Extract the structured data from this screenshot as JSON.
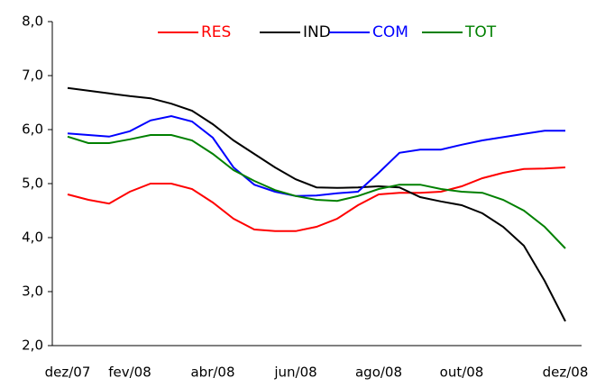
{
  "chart_data": {
    "type": "line",
    "categories": [
      "dez/07",
      null,
      null,
      "fev/08",
      null,
      null,
      null,
      "abr/08",
      null,
      null,
      null,
      "jun/08",
      null,
      null,
      null,
      "ago/08",
      null,
      null,
      null,
      "out/08",
      null,
      null,
      null,
      null,
      "dez/08"
    ],
    "series": [
      {
        "name": "RES",
        "color": "#ff0000",
        "values": [
          4.8,
          4.7,
          4.63,
          4.85,
          5.0,
          5.0,
          4.9,
          4.65,
          4.35,
          4.15,
          4.12,
          4.12,
          4.2,
          4.35,
          4.6,
          4.8,
          4.83,
          4.83,
          4.85,
          4.95,
          5.1,
          5.2,
          5.27,
          5.28,
          5.3
        ]
      },
      {
        "name": "IND",
        "color": "#000000",
        "values": [
          6.77,
          6.72,
          6.67,
          6.62,
          6.58,
          6.48,
          6.35,
          6.1,
          5.8,
          5.55,
          5.3,
          5.08,
          4.93,
          4.92,
          4.93,
          4.95,
          4.93,
          4.75,
          4.67,
          4.6,
          4.45,
          4.2,
          3.85,
          3.2,
          2.45
        ]
      },
      {
        "name": "COM",
        "color": "#0000ff",
        "values": [
          5.93,
          5.9,
          5.87,
          5.97,
          6.17,
          6.25,
          6.15,
          5.85,
          5.3,
          4.98,
          4.85,
          4.77,
          4.78,
          4.82,
          4.85,
          5.2,
          5.57,
          5.63,
          5.63,
          5.72,
          5.8,
          5.86,
          5.92,
          5.98,
          5.98
        ]
      },
      {
        "name": "TOT",
        "color": "#008000",
        "values": [
          5.87,
          5.75,
          5.75,
          5.82,
          5.9,
          5.9,
          5.8,
          5.55,
          5.25,
          5.05,
          4.88,
          4.77,
          4.7,
          4.68,
          4.77,
          4.9,
          4.98,
          4.98,
          4.9,
          4.85,
          4.83,
          4.7,
          4.5,
          4.2,
          3.8
        ]
      }
    ],
    "ylim": [
      2.0,
      8.0
    ],
    "yticks": [
      {
        "value": 2.0,
        "label": "2,0"
      },
      {
        "value": 3.0,
        "label": "3,0"
      },
      {
        "value": 4.0,
        "label": "4,0"
      },
      {
        "value": 5.0,
        "label": "5,0"
      },
      {
        "value": 6.0,
        "label": "6,0"
      },
      {
        "value": 7.0,
        "label": "7,0"
      },
      {
        "value": 8.0,
        "label": "8,0"
      }
    ],
    "grid": false,
    "legend": "top"
  }
}
